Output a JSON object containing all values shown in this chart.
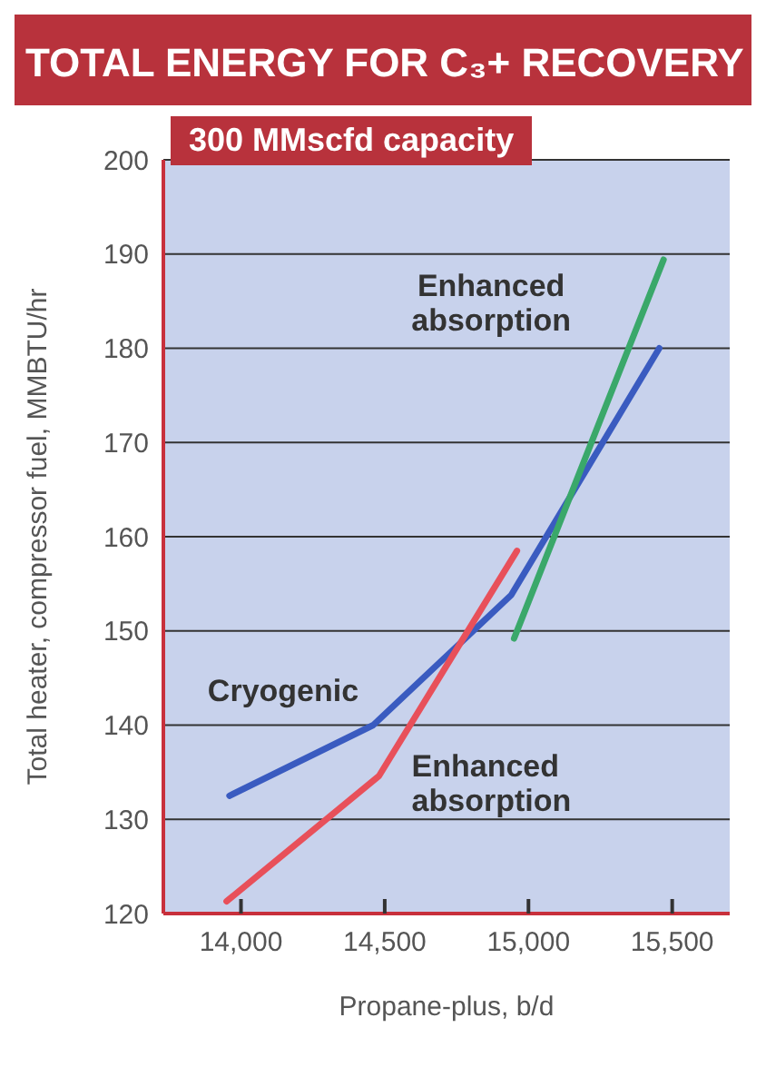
{
  "chart_data": {
    "type": "line",
    "title": "TOTAL ENERGY FOR C₃+ RECOVERY",
    "subtitle": "300 MMscfd capacity",
    "xlabel": "Propane-plus, b/d",
    "ylabel": "Total heater, compressor fuel, MMBTU/hr",
    "xlim": [
      13730,
      15700
    ],
    "xticks": [
      {
        "value": 14000,
        "label": "14,000"
      },
      {
        "value": 14500,
        "label": "14,500"
      },
      {
        "value": 15000,
        "label": "15,000"
      },
      {
        "value": 15500,
        "label": "15,500"
      }
    ],
    "ylim": [
      120,
      200
    ],
    "yticks": [
      120,
      130,
      140,
      150,
      160,
      170,
      180,
      190,
      200
    ],
    "grid": "y",
    "marker": "none",
    "line_style": "solid",
    "series": [
      {
        "name": "Cryogenic",
        "color": "#3a5bc0",
        "x": [
          13960,
          14460,
          14940,
          15455
        ],
        "values": [
          132.5,
          140,
          153.8,
          180
        ]
      },
      {
        "name": "Enhanced absorption",
        "color": "#e8505a",
        "x": [
          13950,
          14480,
          14960
        ],
        "values": [
          121.3,
          134.6,
          158.5
        ]
      },
      {
        "name": "Enhanced absorption",
        "color": "#3aa86a",
        "x": [
          14950,
          15470
        ],
        "values": [
          149.2,
          189.4
        ]
      }
    ]
  }
}
